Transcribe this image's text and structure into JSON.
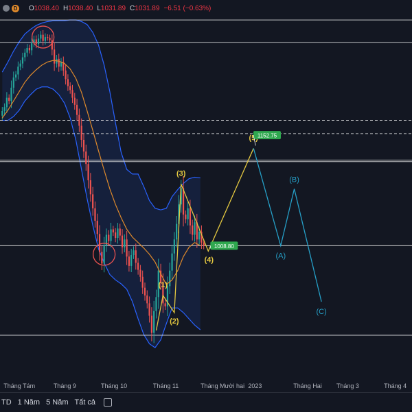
{
  "ohlc": {
    "o_key": "O",
    "o_val": "1038.40",
    "h_key": "H",
    "h_val": "1038.40",
    "l_key": "L",
    "l_val": "1031.89",
    "c_key": "C",
    "c_val": "1031.89",
    "change": "−6.51 (−0.63%)",
    "interval_badge": "D"
  },
  "colors": {
    "background": "#131722",
    "up": "#26a69a",
    "down": "#ef5350",
    "band": "#2962ff",
    "ma": "#e08a2b",
    "wave_main": "#e4c840",
    "wave_corr": "#26a0c8",
    "level_line": "#e6e6e6",
    "target_label": "#2fa84f"
  },
  "toolbar": {
    "ranges": [
      "TD",
      "1 Năm",
      "5 Năm",
      "Tất cả"
    ],
    "calendar_icon": "calendar-icon"
  },
  "chart_data": {
    "type": "candlestick",
    "title": "",
    "indicators": [
      "Bollinger Bands",
      "Moving average (middle band)"
    ],
    "x_ticks": [
      {
        "label": "Tháng Tám",
        "t": 0
      },
      {
        "label": "Tháng 9",
        "t": 22
      },
      {
        "label": "Tháng 10",
        "t": 43
      },
      {
        "label": "Tháng 11",
        "t": 66
      },
      {
        "label": "Tháng Mười hai",
        "t": 87
      },
      {
        "label": "2023",
        "t": 108
      },
      {
        "label": "Tháng Hai",
        "t": 128
      },
      {
        "label": "Tháng 3",
        "t": 147
      },
      {
        "label": "Tháng 4",
        "t": 168
      }
    ],
    "y_range": [
      865,
      1330
    ],
    "candles_close": [
      1205,
      1210,
      1222,
      1218,
      1235,
      1248,
      1252,
      1262,
      1266,
      1274,
      1280,
      1286,
      1283,
      1292,
      1297,
      1291,
      1298,
      1303,
      1295,
      1300,
      1299,
      1296,
      1284,
      1266,
      1272,
      1262,
      1268,
      1257,
      1246,
      1237,
      1232,
      1222,
      1213,
      1200,
      1186,
      1168,
      1153,
      1137,
      1116,
      1098,
      1080,
      1064,
      1047,
      1024,
      1009,
      1032,
      1046,
      1038,
      1053,
      1049,
      1042,
      1054,
      1045,
      1030,
      1040,
      1018,
      1006,
      1020,
      1026,
      1010,
      1001,
      992,
      978,
      968,
      958,
      942,
      920,
      948,
      966,
      1000,
      984,
      958,
      954,
      980,
      1000,
      1022,
      1040,
      1060,
      1085,
      1106,
      1072,
      1066,
      1080,
      1058,
      1046,
      1062,
      1040,
      1050,
      1036,
      1031.89
    ],
    "bollinger_upper": [
      1255,
      1268,
      1282,
      1294,
      1304,
      1310,
      1315,
      1318,
      1320,
      1321,
      1321,
      1321,
      1322,
      1322,
      1320,
      1316,
      1306,
      1290,
      1264,
      1230,
      1190,
      1152,
      1130,
      1124,
      1124,
      1108,
      1090,
      1080,
      1078,
      1080,
      1095,
      1104,
      1112,
      1118,
      1120,
      1119
    ],
    "bollinger_lower": [
      1193,
      1193,
      1198,
      1206,
      1218,
      1226,
      1233,
      1236,
      1236,
      1233,
      1226,
      1215,
      1196,
      1168,
      1130,
      1092,
      1058,
      1028,
      1010,
      995,
      988,
      983,
      976,
      960,
      938,
      918,
      906,
      901,
      911,
      932,
      952,
      952,
      946,
      938,
      930,
      924
    ],
    "moving_average": [
      1196,
      1206,
      1218,
      1230,
      1242,
      1251,
      1258,
      1264,
      1268,
      1270,
      1269,
      1266,
      1259,
      1247,
      1229,
      1205,
      1180,
      1154,
      1129,
      1105,
      1085,
      1068,
      1053,
      1043,
      1036,
      1029,
      1021,
      1011,
      996,
      982,
      988,
      1000,
      1018,
      1030,
      1036,
      1032
    ],
    "horizontal_levels": [
      1322,
      1293,
      1193,
      1176,
      1142,
      1140,
      1032,
      917
    ],
    "highlight_circles": [
      {
        "t": 18,
        "price": 1300
      },
      {
        "t": 45,
        "price": 1021
      }
    ],
    "elliott_wave": {
      "points": [
        {
          "label": "(1)",
          "t": 71,
          "price": 968
        },
        {
          "label": "(2)",
          "t": 76,
          "price": 946
        },
        {
          "label": "(3)",
          "t": 79,
          "price": 1111
        },
        {
          "label": "(4)",
          "t": 91,
          "price": 1025
        },
        {
          "label": "(5)",
          "t": 111,
          "price": 1157
        }
      ],
      "start": {
        "t": 68,
        "price": 923
      }
    },
    "correction_wave": {
      "points": [
        {
          "label": "(A)",
          "t": 123,
          "price": 1032
        },
        {
          "label": "(B)",
          "t": 129,
          "price": 1105
        },
        {
          "label": "(C)",
          "t": 141,
          "price": 960
        }
      ]
    },
    "price_labels": [
      {
        "text": "1152.75",
        "t": 117,
        "price": 1174
      },
      {
        "text": "1008.80",
        "t": 98,
        "price": 1032
      }
    ]
  }
}
